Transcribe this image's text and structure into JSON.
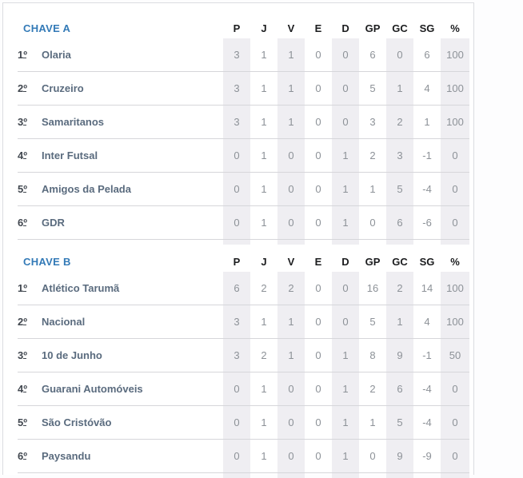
{
  "page": {
    "accent_blue": "#337ab7",
    "stripe_color": "#efeef2",
    "divider_color": "#d6d6da",
    "card_border_color": "#dbdce0"
  },
  "ordinal_symbol": "º",
  "columns": [
    "P",
    "J",
    "V",
    "E",
    "D",
    "GP",
    "GC",
    "SG",
    "%"
  ],
  "striped_column_indexes": [
    0,
    2,
    4,
    6,
    8
  ],
  "groups": [
    {
      "title": "CHAVE A",
      "rows": [
        {
          "pos": "1",
          "team": "Olaria",
          "stats": [
            "3",
            "1",
            "1",
            "0",
            "0",
            "6",
            "0",
            "6",
            "100"
          ]
        },
        {
          "pos": "2",
          "team": "Cruzeiro",
          "stats": [
            "3",
            "1",
            "1",
            "0",
            "0",
            "5",
            "1",
            "4",
            "100"
          ]
        },
        {
          "pos": "3",
          "team": "Samaritanos",
          "stats": [
            "3",
            "1",
            "1",
            "0",
            "0",
            "3",
            "2",
            "1",
            "100"
          ]
        },
        {
          "pos": "4",
          "team": "Inter Futsal",
          "stats": [
            "0",
            "1",
            "0",
            "0",
            "1",
            "2",
            "3",
            "-1",
            "0"
          ]
        },
        {
          "pos": "5",
          "team": "Amigos da Pelada",
          "stats": [
            "0",
            "1",
            "0",
            "0",
            "1",
            "1",
            "5",
            "-4",
            "0"
          ]
        },
        {
          "pos": "6",
          "team": "GDR",
          "stats": [
            "0",
            "1",
            "0",
            "0",
            "1",
            "0",
            "6",
            "-6",
            "0"
          ]
        }
      ]
    },
    {
      "title": "CHAVE B",
      "rows": [
        {
          "pos": "1",
          "team": "Atlético Tarumã",
          "stats": [
            "6",
            "2",
            "2",
            "0",
            "0",
            "16",
            "2",
            "14",
            "100"
          ]
        },
        {
          "pos": "2",
          "team": "Nacional",
          "stats": [
            "3",
            "1",
            "1",
            "0",
            "0",
            "5",
            "1",
            "4",
            "100"
          ]
        },
        {
          "pos": "3",
          "team": "10 de Junho",
          "stats": [
            "3",
            "2",
            "1",
            "0",
            "1",
            "8",
            "9",
            "-1",
            "50"
          ]
        },
        {
          "pos": "4",
          "team": "Guarani Automóveis",
          "stats": [
            "0",
            "1",
            "0",
            "0",
            "1",
            "2",
            "6",
            "-4",
            "0"
          ]
        },
        {
          "pos": "5",
          "team": "São Cristóvão",
          "stats": [
            "0",
            "1",
            "0",
            "0",
            "1",
            "1",
            "5",
            "-4",
            "0"
          ]
        },
        {
          "pos": "6",
          "team": "Paysandu",
          "stats": [
            "0",
            "1",
            "0",
            "0",
            "1",
            "0",
            "9",
            "-9",
            "0"
          ]
        }
      ]
    }
  ]
}
